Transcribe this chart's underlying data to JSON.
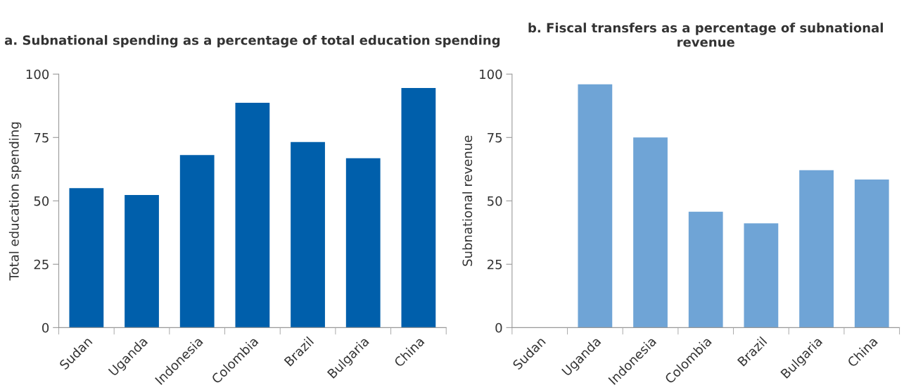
{
  "chart_data": [
    {
      "type": "bar",
      "title": "a. Subnational spending as a percentage of total education spending",
      "ylabel": "Total education spending",
      "categories": [
        "Sudan",
        "Uganda",
        "Indonesia",
        "Colombia",
        "Brazil",
        "Bulgaria",
        "China"
      ],
      "series": [
        {
          "color": "#005fab",
          "values": [
            55.0,
            52.3,
            68.1,
            88.7,
            73.2,
            66.8,
            94.5
          ]
        }
      ],
      "ylim": [
        0,
        100
      ],
      "yticks": [
        0,
        25,
        50,
        75,
        100
      ],
      "grid": false,
      "legend": false
    },
    {
      "type": "bar",
      "title": "b. Fiscal transfers as a percentage of subnational revenue",
      "ylabel": "Subnational revenue",
      "categories": [
        "Sudan",
        "Uganda",
        "Indonesia",
        "Colombia",
        "Brazil",
        "Bulgaria",
        "China"
      ],
      "series": [
        {
          "color": "#6fa4d6",
          "values": [
            null,
            96.0,
            75.0,
            45.7,
            41.1,
            62.1,
            58.4
          ]
        }
      ],
      "ylim": [
        0,
        100
      ],
      "yticks": [
        0,
        25,
        50,
        75,
        100
      ],
      "grid": false,
      "legend": false
    }
  ]
}
